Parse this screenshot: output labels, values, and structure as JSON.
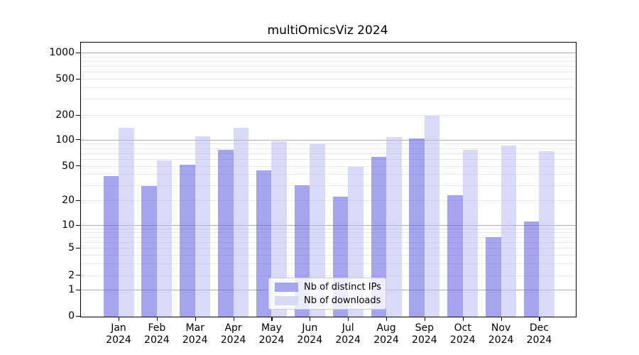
{
  "title": "multiOmicsViz 2024",
  "colors": {
    "ips_solid": "#a5a5ee",
    "downloads_solid": "#d9d9f7",
    "ips_bar": "rgba(105,105,228,0.6)",
    "downloads_bar": "rgba(192,192,243,0.6)",
    "grid_major": "rgba(0,0,0,0.33)",
    "grid_minor": "rgba(0,0,0,0.09)"
  },
  "legend": {
    "position": "lower center"
  },
  "chart_data": {
    "type": "bar",
    "title": "multiOmicsViz 2024",
    "categories": [
      "Jan",
      "Feb",
      "Mar",
      "Apr",
      "May",
      "Jun",
      "Jul",
      "Aug",
      "Sep",
      "Oct",
      "Nov",
      "Dec"
    ],
    "year": "2024",
    "series": [
      {
        "name": "Nb of distinct IPs",
        "values": [
          38,
          29,
          52,
          77,
          44,
          30,
          22,
          63,
          104,
          23,
          7,
          11
        ]
      },
      {
        "name": "Nb of downloads",
        "values": [
          140,
          58,
          110,
          140,
          96,
          89,
          49,
          108,
          196,
          77,
          85,
          74
        ]
      }
    ],
    "xlabel": "",
    "ylabel": "",
    "yticks": [
      0,
      1,
      2,
      5,
      10,
      20,
      50,
      100,
      200,
      500,
      1000
    ],
    "yscale": "log-like with linear 0-1 segment",
    "ylim": [
      0,
      1000
    ],
    "grid": true,
    "legend_position": "lower center"
  }
}
